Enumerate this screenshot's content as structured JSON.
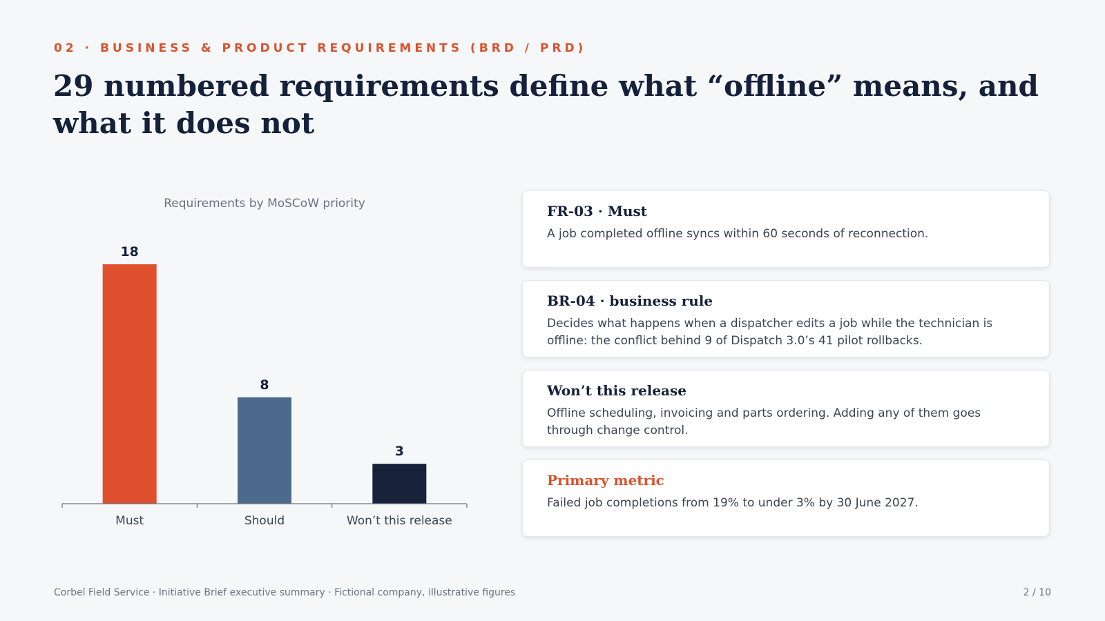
{
  "header": {
    "kicker": "02 · BUSINESS & PRODUCT REQUIREMENTS (BRD / PRD)",
    "title": "29 numbered requirements define what “offline” means, and what it does not"
  },
  "chart_data": {
    "type": "bar",
    "title": "Requirements by MoSCoW priority",
    "categories": [
      "Must",
      "Should",
      "Won’t this release"
    ],
    "values": [
      18,
      8,
      3
    ],
    "colors": [
      "#e0502e",
      "#4c6a8b",
      "#18223b"
    ],
    "xlabel": "",
    "ylabel": "",
    "ylim": [
      0,
      18
    ],
    "grid": false,
    "data_labels": true
  },
  "cards": [
    {
      "title": "FR-03 · Must",
      "body": "A job completed offline syncs within 60 seconds of reconnection.",
      "accent": false
    },
    {
      "title": "BR-04 · business rule",
      "body": "Decides what happens when a dispatcher edits a job while the technician is offline: the conflict behind 9 of Dispatch 3.0’s 41 pilot rollbacks.",
      "accent": false
    },
    {
      "title": "Won’t this release",
      "body": "Offline scheduling, invoicing and parts ordering. Adding any of them goes through change control.",
      "accent": false
    },
    {
      "title": "Primary metric",
      "body": "Failed job completions from 19% to under 3% by 30 June 2027.",
      "accent": true
    }
  ],
  "footer": {
    "left": "Corbel Field Service · Initiative Brief executive summary · Fictional company, illustrative figures",
    "page": "2 / 10"
  },
  "colors": {
    "accent": "#d9532f",
    "title": "#14213a",
    "muted": "#6b7280"
  }
}
